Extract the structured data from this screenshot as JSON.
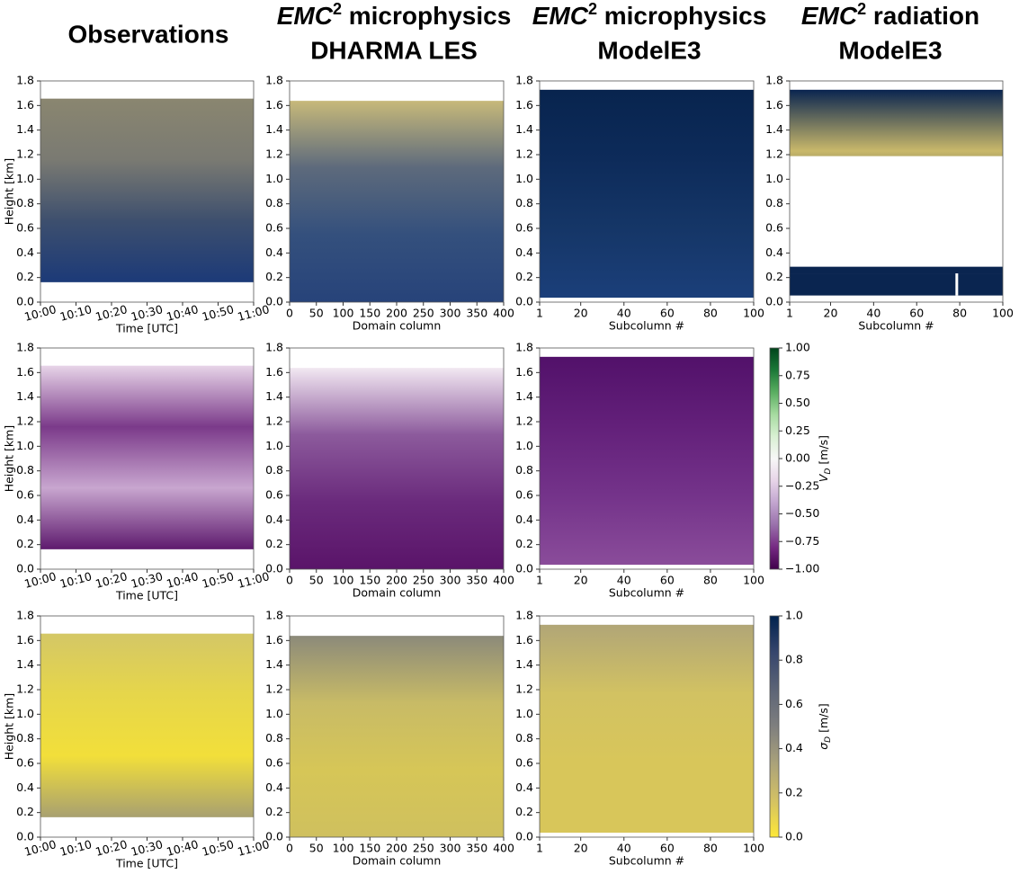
{
  "column_titles": [
    {
      "line1": "Observations"
    },
    {
      "italic": "EMC",
      "superscript": "2",
      "line1": " microphysics",
      "line2": "DHARMA LES"
    },
    {
      "italic": "EMC",
      "superscript": "2",
      "line1": " microphysics",
      "line2": "ModelE3"
    },
    {
      "italic": "EMC",
      "superscript": "2",
      "line1": " radiation",
      "line2": "ModelE3"
    }
  ],
  "chart_data": [
    {
      "type": "heatmap",
      "ylabel": "Height [km]",
      "xlabel": "Time [UTC]",
      "xlim": [
        0,
        60
      ],
      "xtick_rotation": -15,
      "xticks": [
        {
          "value": 0,
          "label": "10:00"
        },
        {
          "value": 10,
          "label": "10:10"
        },
        {
          "value": 20,
          "label": "10:20"
        },
        {
          "value": 30,
          "label": "10:30"
        },
        {
          "value": 40,
          "label": "10:40"
        },
        {
          "value": 50,
          "label": "10:50"
        },
        {
          "value": 60,
          "label": "11:00"
        }
      ],
      "ylim": [
        0,
        1.8
      ],
      "yticks": [
        {
          "value": 0,
          "label": "0.0"
        },
        0.2,
        0.4,
        0.6,
        0.8,
        {
          "value": 1,
          "label": "1.0"
        },
        1.2,
        1.4,
        1.6,
        1.8
      ],
      "colors": [
        "#1c3a78",
        "#3d4f6e",
        "#7a7a72",
        "#8a8670"
      ]
    },
    {
      "type": "heatmap",
      "xlabel": "Domain column",
      "xlim": [
        0,
        400
      ],
      "xticks": [
        0,
        50,
        100,
        150,
        200,
        250,
        300,
        350,
        400
      ],
      "ylim": [
        0,
        1.8
      ],
      "yticks": [
        {
          "value": 0,
          "label": "0.0"
        },
        0.2,
        0.4,
        0.6,
        0.8,
        {
          "value": 1,
          "label": "1.0"
        },
        1.2,
        1.4,
        1.6,
        1.8
      ],
      "colors": [
        "#27437a",
        "#34507d",
        "#5d6a7c",
        "#c7b97a"
      ]
    },
    {
      "type": "heatmap",
      "xlabel": "Subcolumn #",
      "xlim": [
        1,
        100
      ],
      "xticks": [
        1,
        20,
        40,
        60,
        80,
        100
      ],
      "ylim": [
        0,
        1.8
      ],
      "yticks": [
        {
          "value": 0,
          "label": "0.0"
        },
        0.2,
        0.4,
        0.6,
        0.8,
        {
          "value": 1,
          "label": "1.0"
        },
        1.2,
        1.4,
        1.6,
        1.8
      ],
      "colors": [
        "#1b3f7a",
        "#153667",
        "#0d2b5a",
        "#08244e"
      ]
    },
    {
      "type": "heatmap",
      "xlabel": "Subcolumn #",
      "xlim": [
        1,
        100
      ],
      "xticks": [
        1,
        20,
        40,
        60,
        80,
        100
      ],
      "ylim": [
        0,
        1.8
      ],
      "yticks": [
        {
          "value": 0,
          "label": "0.0"
        },
        0.2,
        0.4,
        0.6,
        0.8,
        {
          "value": 1,
          "label": "1.0"
        },
        1.2,
        1.4,
        1.6,
        1.8
      ],
      "colors": [
        "#0a2550",
        "#0a2550",
        "#c9b86a",
        "#0a2550"
      ]
    },
    {
      "type": "heatmap",
      "ylabel": "Height [km]",
      "xlabel": "Time [UTC]",
      "xlim": [
        0,
        60
      ],
      "xtick_rotation": -15,
      "xticks": [
        {
          "value": 0,
          "label": "10:00"
        },
        {
          "value": 10,
          "label": "10:10"
        },
        {
          "value": 20,
          "label": "10:20"
        },
        {
          "value": 30,
          "label": "10:30"
        },
        {
          "value": 40,
          "label": "10:40"
        },
        {
          "value": 50,
          "label": "10:50"
        },
        {
          "value": 60,
          "label": "11:00"
        }
      ],
      "ylim": [
        0,
        1.8
      ],
      "yticks": [
        {
          "value": 0,
          "label": "0.0"
        },
        0.2,
        0.4,
        0.6,
        0.8,
        {
          "value": 1,
          "label": "1.0"
        },
        1.2,
        1.4,
        1.6,
        1.8
      ],
      "colors": [
        "#5e1a6e",
        "#c8a6cf",
        "#7b3a8a",
        "#e7d4e8"
      ]
    },
    {
      "type": "heatmap",
      "xlabel": "Domain column",
      "xlim": [
        0,
        400
      ],
      "xticks": [
        0,
        50,
        100,
        150,
        200,
        250,
        300,
        350,
        400
      ],
      "ylim": [
        0,
        1.8
      ],
      "yticks": [
        {
          "value": 0,
          "label": "0.0"
        },
        0.2,
        0.4,
        0.6,
        0.8,
        {
          "value": 1,
          "label": "1.0"
        },
        1.2,
        1.4,
        1.6,
        1.8
      ],
      "colors": [
        "#5a1469",
        "#6a2a7c",
        "#8c5a9c",
        "#f2e8f2"
      ]
    },
    {
      "type": "heatmap",
      "xlabel": "Subcolumn #",
      "xlim": [
        1,
        100
      ],
      "xticks": [
        1,
        20,
        40,
        60,
        80,
        100
      ],
      "ylim": [
        0,
        1.8
      ],
      "yticks": [
        {
          "value": 0,
          "label": "0.0"
        },
        0.2,
        0.4,
        0.6,
        0.8,
        {
          "value": 1,
          "label": "1.0"
        },
        1.2,
        1.4,
        1.6,
        1.8
      ],
      "colors": [
        "#8a4c9a",
        "#74338a",
        "#63207a",
        "#52116a"
      ]
    },
    {
      "type": "colorbar",
      "label_symbol": "V",
      "label_subscript": "D",
      "label_unit": " [m/s]",
      "ylim": [
        -1,
        1
      ],
      "yticks": [
        {
          "value": -1,
          "label": "−1.00"
        },
        {
          "value": -0.75,
          "label": "−0.75"
        },
        {
          "value": -0.5,
          "label": "−0.50"
        },
        {
          "value": -0.25,
          "label": "−0.25"
        },
        {
          "value": 0,
          "label": "0.00"
        },
        0.25,
        {
          "value": 0.5,
          "label": "0.50"
        },
        0.75,
        {
          "value": 1,
          "label": "1.00"
        }
      ],
      "colors": [
        "#40004b",
        "#762a83",
        "#9970ab",
        "#c2a5cf",
        "#e7d4e8",
        "#f7f7f7",
        "#d9f0d3",
        "#a6dba0",
        "#5aae61",
        "#1b7837",
        "#00441b"
      ]
    },
    {
      "type": "heatmap",
      "ylabel": "Height [km]",
      "xlabel": "Time [UTC]",
      "xlim": [
        0,
        60
      ],
      "xtick_rotation": -15,
      "xticks": [
        {
          "value": 0,
          "label": "10:00"
        },
        {
          "value": 10,
          "label": "10:10"
        },
        {
          "value": 20,
          "label": "10:20"
        },
        {
          "value": 30,
          "label": "10:30"
        },
        {
          "value": 40,
          "label": "10:40"
        },
        {
          "value": 50,
          "label": "10:50"
        },
        {
          "value": 60,
          "label": "11:00"
        }
      ],
      "ylim": [
        0,
        1.8
      ],
      "yticks": [
        {
          "value": 0,
          "label": "0.0"
        },
        0.2,
        0.4,
        0.6,
        0.8,
        {
          "value": 1,
          "label": "1.0"
        },
        1.2,
        1.4,
        1.6,
        1.8
      ],
      "colors": [
        "#a8a070",
        "#f2df3a",
        "#e6d64a",
        "#d4c766"
      ]
    },
    {
      "type": "heatmap",
      "xlabel": "Domain column",
      "xlim": [
        0,
        400
      ],
      "xticks": [
        0,
        50,
        100,
        150,
        200,
        250,
        300,
        350,
        400
      ],
      "ylim": [
        0,
        1.8
      ],
      "yticks": [
        {
          "value": 0,
          "label": "0.0"
        },
        0.2,
        0.4,
        0.6,
        0.8,
        {
          "value": 1,
          "label": "1.0"
        },
        1.2,
        1.4,
        1.6,
        1.8
      ],
      "colors": [
        "#cfc05e",
        "#d6c657",
        "#c8bb66",
        "#8c8a7a"
      ]
    },
    {
      "type": "heatmap",
      "xlabel": "Subcolumn #",
      "xlim": [
        1,
        100
      ],
      "xticks": [
        1,
        20,
        40,
        60,
        80,
        100
      ],
      "ylim": [
        0,
        1.8
      ],
      "yticks": [
        {
          "value": 0,
          "label": "0.0"
        },
        0.2,
        0.4,
        0.6,
        0.8,
        {
          "value": 1,
          "label": "1.0"
        },
        1.2,
        1.4,
        1.6,
        1.8
      ],
      "colors": [
        "#d8c65a",
        "#d8c65a",
        "#d2c262",
        "#b1a677"
      ]
    },
    {
      "type": "colorbar",
      "label_symbol": "σ",
      "label_subscript": "D",
      "label_unit": " [m/s]",
      "ylim": [
        0,
        1
      ],
      "yticks": [
        {
          "value": 0,
          "label": "0.0"
        },
        0.2,
        0.4,
        0.6,
        0.8,
        {
          "value": 1,
          "label": "1.0"
        }
      ],
      "colors": [
        "#fee838",
        "#d3c164",
        "#aaa27a",
        "#7f7f7f",
        "#5c6476",
        "#37466d",
        "#00224e"
      ]
    }
  ]
}
